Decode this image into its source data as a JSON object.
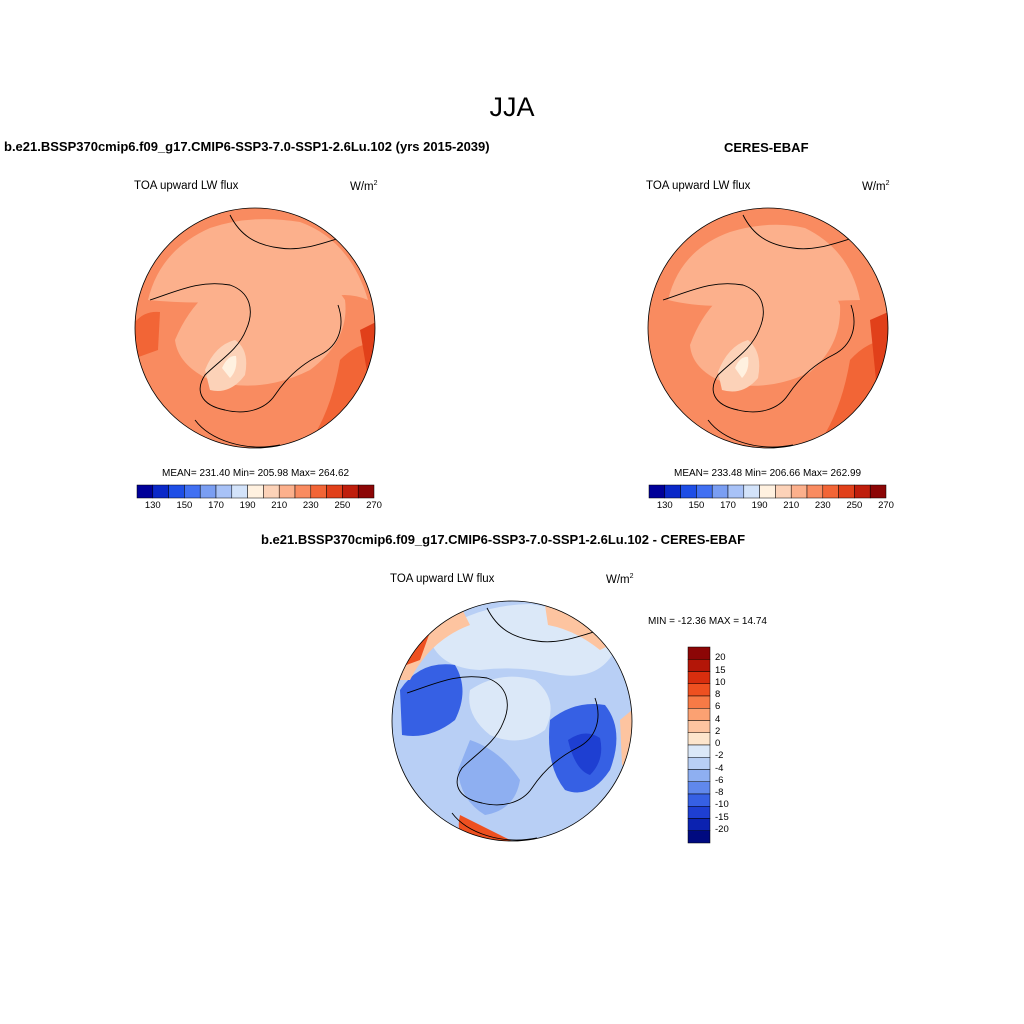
{
  "main_title": "JJA",
  "panels": [
    {
      "title": "b.e21.BSSP370cmip6.f09_g17.CMIP6-SSP3-7.0-SSP1-2.6Lu.102 (yrs 2015-2039)",
      "variable": "TOA upward LW flux",
      "units": "W/m",
      "units_exp": "2",
      "stats": "MEAN= 231.40  Min= 205.98  Max= 264.62"
    },
    {
      "title": "CERES-EBAF",
      "variable": "TOA upward LW flux",
      "units": "W/m",
      "units_exp": "2",
      "stats": "MEAN= 233.48  Min= 206.66  Max= 262.99"
    },
    {
      "title": "b.e21.BSSP370cmip6.f09_g17.CMIP6-SSP3-7.0-SSP1-2.6Lu.102 - CERES-EBAF",
      "variable": "TOA upward LW flux",
      "units": "W/m",
      "units_exp": "2",
      "minmax": "MIN = -12.36 MAX =  14.74"
    }
  ],
  "colorbar_h": {
    "colors": [
      "#000099",
      "#0a28c8",
      "#1e4ee6",
      "#4170f2",
      "#7a9ef2",
      "#a8c2f7",
      "#d3e3fa",
      "#fff1e0",
      "#fcd2b8",
      "#fcb08c",
      "#f98b60",
      "#f26536",
      "#e1401a",
      "#bf1e0c",
      "#8c0606"
    ],
    "labels": [
      "130",
      "150",
      "170",
      "190",
      "210",
      "230",
      "250",
      "270"
    ]
  },
  "colorbar_v": {
    "colors": [
      "#8c0606",
      "#b31608",
      "#d82e0e",
      "#ee5020",
      "#f77a46",
      "#fba172",
      "#fdc4a0",
      "#fde5cc",
      "#dbe8f8",
      "#b8cff5",
      "#8eaff1",
      "#6088ec",
      "#3660e4",
      "#1e3fd2",
      "#0b22b0",
      "#000a80"
    ],
    "labels": [
      "20",
      "15",
      "10",
      "8",
      "6",
      "4",
      "2",
      "0",
      "-2",
      "-4",
      "-6",
      "-8",
      "-10",
      "-15",
      "-20"
    ]
  },
  "map_colors": {
    "land_light": "#fcb08c",
    "ocean_mid": "#f98b60",
    "warm": "#f26536",
    "hot": "#e1401a",
    "ice": "#fcd2b8",
    "ice_center": "#fff1e0",
    "diff_neutral": "#dbe8f8",
    "diff_light": "#b8cff5",
    "diff_mid": "#8eaff1",
    "diff_deep": "#3660e4",
    "diff_deeper": "#1e3fd2",
    "diff_pos": "#fdc4a0",
    "diff_pos_strong": "#ee5020"
  }
}
